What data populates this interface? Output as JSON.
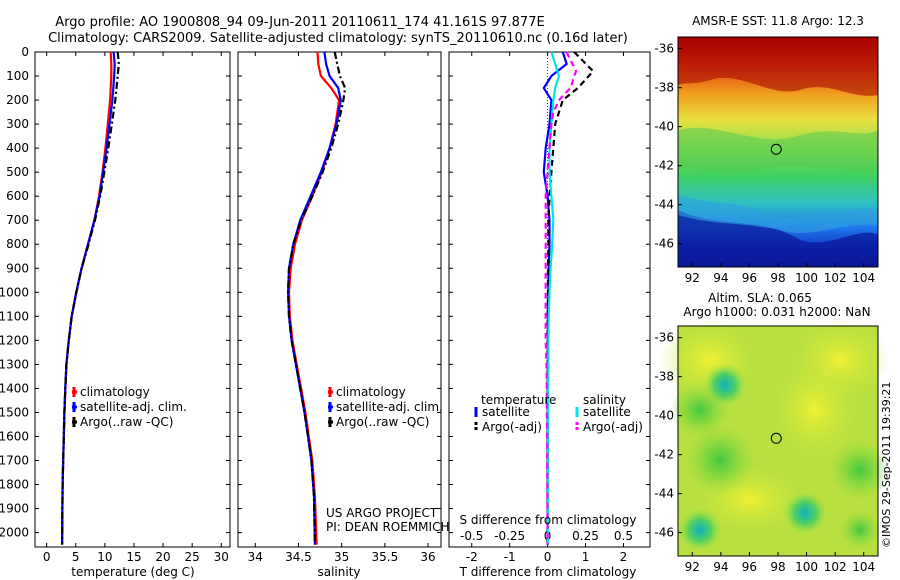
{
  "figure": {
    "title_line1": "Argo profile: AO 1900808_94 09-Jun-2011 20110611_174 41.161S 97.877E",
    "title_line2": "Climatology: CARS2009. Satellite-adjusted climatology: synTS_20110610.nc (0.16d later)",
    "credit": "©IMOS 29-Sep-2011 19:39:21"
  },
  "chart_data": [
    {
      "type": "line",
      "id": "temperature",
      "xlabel": "temperature (deg C)",
      "ylabel": "",
      "xlim": [
        -2,
        31.5
      ],
      "ylim": [
        2060,
        0
      ],
      "xticks": [
        0,
        5,
        10,
        15,
        20,
        25,
        30
      ],
      "yticks": [
        0,
        100,
        200,
        300,
        400,
        500,
        600,
        700,
        800,
        900,
        1000,
        1100,
        1200,
        1300,
        1400,
        1500,
        1600,
        1700,
        1800,
        1900,
        2000
      ],
      "legend_position": "lower-left",
      "series": [
        {
          "name": "climatology",
          "color": "#ff0000",
          "dash": "solid",
          "x": [
            11.0,
            11.1,
            11.1,
            10.9,
            10.5,
            10.1,
            9.6,
            9.0,
            8.2,
            7.1,
            6.0,
            5.1,
            4.3,
            3.8,
            3.4,
            3.2,
            3.05,
            2.95,
            2.85,
            2.75,
            2.7,
            2.65
          ],
          "y": [
            0,
            50,
            100,
            200,
            300,
            400,
            500,
            600,
            700,
            800,
            900,
            1000,
            1100,
            1200,
            1300,
            1400,
            1500,
            1600,
            1700,
            1800,
            1900,
            2050
          ]
        },
        {
          "name": "satellite-adj. clim.",
          "color": "#0000ff",
          "dash": "solid",
          "x": [
            11.5,
            11.7,
            11.6,
            11.3,
            10.8,
            10.3,
            9.7,
            9.1,
            8.2,
            7.1,
            6.0,
            5.1,
            4.3,
            3.8,
            3.4,
            3.2,
            3.05,
            2.95,
            2.85,
            2.75,
            2.7,
            2.65
          ],
          "y": [
            0,
            50,
            100,
            200,
            300,
            400,
            500,
            600,
            700,
            800,
            900,
            1000,
            1100,
            1200,
            1300,
            1400,
            1500,
            1600,
            1700,
            1800,
            1900,
            2050
          ]
        },
        {
          "name": "Argo(..raw -QC)",
          "color": "#000000",
          "dash": "dashdot",
          "x": [
            12.2,
            12.4,
            12.2,
            11.8,
            11.2,
            10.6,
            9.9,
            9.2,
            8.3,
            7.2,
            6.0,
            5.1,
            4.3,
            3.8,
            3.4,
            3.2,
            3.05,
            2.95,
            2.85,
            2.75,
            2.7,
            2.65
          ],
          "y": [
            0,
            50,
            100,
            200,
            300,
            400,
            500,
            600,
            700,
            800,
            900,
            1000,
            1100,
            1200,
            1300,
            1400,
            1500,
            1600,
            1700,
            1800,
            1900,
            2050
          ]
        }
      ]
    },
    {
      "type": "line",
      "id": "salinity",
      "xlabel": "salinity",
      "ylabel": "",
      "xlim": [
        33.8,
        36.15
      ],
      "ylim": [
        2060,
        0
      ],
      "xticks": [
        34,
        34.5,
        35,
        35.5,
        36
      ],
      "xtick_labels": [
        "34",
        "34.5",
        "35",
        "35.5",
        "36"
      ],
      "legend_position": "lower-right",
      "series": [
        {
          "name": "climatology",
          "color": "#ff0000",
          "dash": "solid",
          "x": [
            34.72,
            34.73,
            34.76,
            34.88,
            34.97,
            34.93,
            34.86,
            34.77,
            34.66,
            34.54,
            34.46,
            34.41,
            34.39,
            34.4,
            34.43,
            34.48,
            34.53,
            34.58,
            34.62,
            34.66,
            34.69,
            34.71
          ],
          "y": [
            0,
            50,
            100,
            150,
            200,
            300,
            400,
            500,
            600,
            700,
            800,
            900,
            1000,
            1100,
            1200,
            1300,
            1400,
            1500,
            1600,
            1700,
            1850,
            2050
          ]
        },
        {
          "name": "satellite-adj. clim.",
          "color": "#0000ff",
          "dash": "solid",
          "x": [
            34.8,
            34.82,
            34.86,
            34.96,
            34.99,
            34.94,
            34.86,
            34.76,
            34.64,
            34.52,
            34.44,
            34.39,
            34.38,
            34.39,
            34.42,
            34.47,
            34.52,
            34.57,
            34.61,
            34.65,
            34.68,
            34.69
          ],
          "y": [
            0,
            50,
            100,
            150,
            200,
            300,
            400,
            500,
            600,
            700,
            800,
            900,
            1000,
            1100,
            1200,
            1300,
            1400,
            1500,
            1600,
            1700,
            1850,
            2050
          ]
        },
        {
          "name": "Argo(..raw -QC)",
          "color": "#000000",
          "dash": "dashdot",
          "x": [
            34.92,
            34.95,
            34.98,
            35.04,
            35.02,
            34.96,
            34.88,
            34.78,
            34.66,
            34.53,
            34.44,
            34.39,
            34.38,
            34.39,
            34.42,
            34.47,
            34.52,
            34.57,
            34.61,
            34.65,
            34.68,
            34.69
          ],
          "y": [
            0,
            50,
            100,
            150,
            200,
            300,
            400,
            500,
            600,
            700,
            800,
            900,
            1000,
            1100,
            1200,
            1300,
            1400,
            1500,
            1600,
            1700,
            1850,
            2050
          ]
        }
      ],
      "annotation": [
        "US ARGO PROJECT",
        "PI: DEAN ROEMMICH"
      ]
    },
    {
      "type": "line",
      "id": "difference",
      "xlabel": "T difference from climatology",
      "xlabel_top": "S difference from climatology",
      "ylabel": "",
      "xlim": [
        -2.6,
        2.7
      ],
      "ylim": [
        2060,
        0
      ],
      "xticks": [
        -2,
        -1,
        0,
        1,
        2
      ],
      "top_tick_values": [
        -0.5,
        -0.25,
        0,
        0.25,
        0.5
      ],
      "top_tick_labels": [
        "-0.5",
        "-0.25",
        "0",
        "0.25",
        "0.5"
      ],
      "legend_position": "lower-center",
      "legend_group_titles": [
        "temperature",
        "salinity"
      ],
      "series": [
        {
          "name": "satellite",
          "group": "temperature",
          "color": "#0000ff",
          "dash": "solid",
          "x": [
            0.4,
            0.5,
            0.1,
            -0.1,
            0.1,
            0.05,
            -0.05,
            -0.1,
            0,
            0.05,
            0.05,
            0.03,
            0.02,
            0.01,
            0.01,
            0.01,
            0,
            0,
            0,
            0,
            0
          ],
          "y": [
            0,
            50,
            100,
            150,
            200,
            300,
            400,
            500,
            600,
            700,
            800,
            900,
            1000,
            1100,
            1200,
            1300,
            1400,
            1500,
            1600,
            1700,
            2050
          ]
        },
        {
          "name": "Argo(-adj)",
          "group": "temperature",
          "color": "#000000",
          "dash": "dashed",
          "x": [
            0.7,
            1.2,
            0.8,
            0.4,
            0.3,
            0.2,
            0.15,
            0.1,
            0.05,
            0.02,
            0.02,
            0.01,
            0.01,
            0,
            0,
            0,
            0,
            0,
            0,
            0,
            0
          ],
          "y": [
            0,
            80,
            150,
            200,
            250,
            300,
            400,
            500,
            600,
            700,
            800,
            900,
            1000,
            1100,
            1200,
            1300,
            1400,
            1500,
            1600,
            1700,
            2050
          ]
        },
        {
          "name": "satellite",
          "group": "salinity",
          "color": "#00e5e5",
          "dash": "solid",
          "x": [
            0.1,
            0.2,
            0.3,
            0.2,
            0.15,
            0.1,
            0.05,
            0.05,
            0.1,
            0.15,
            0.12,
            0.08,
            0.05,
            0.03,
            0.02,
            0.02,
            0.01,
            0.01,
            0.01,
            0.01,
            0.01
          ],
          "y": [
            0,
            50,
            100,
            150,
            200,
            300,
            400,
            500,
            600,
            700,
            800,
            900,
            1000,
            1100,
            1200,
            1300,
            1400,
            1500,
            1600,
            1700,
            2050
          ]
        },
        {
          "name": "Argo(-adj)",
          "group": "salinity",
          "color": "#ff00ff",
          "dash": "dashed",
          "x": [
            0.5,
            0.75,
            0.6,
            0.3,
            0.15,
            0.1,
            0.05,
            0,
            -0.05,
            -0.05,
            -0.05,
            -0.05,
            -0.05,
            -0.05,
            -0.05,
            -0.03,
            -0.02,
            -0.02,
            -0.01,
            -0.01,
            0
          ],
          "y": [
            0,
            80,
            150,
            200,
            250,
            300,
            400,
            500,
            600,
            700,
            800,
            900,
            1000,
            1100,
            1200,
            1300,
            1400,
            1500,
            1600,
            1700,
            2050
          ]
        }
      ]
    },
    {
      "type": "heatmap",
      "id": "sst-map",
      "title": "AMSR-E SST: 11.8 Argo: 12.3",
      "xlim": [
        91,
        105
      ],
      "ylim": [
        -47.2,
        -35.4
      ],
      "xticks": [
        92,
        94,
        96,
        98,
        100,
        102,
        104
      ],
      "yticks": [
        -36,
        -38,
        -40,
        -42,
        -44,
        -46
      ],
      "marker": {
        "lon": 97.877,
        "lat": -41.161,
        "shape": "circle"
      }
    },
    {
      "type": "heatmap",
      "id": "sla-map",
      "title_line1": "Altim. SLA: 0.065",
      "title_line2": "Argo h1000: 0.031 h2000: NaN",
      "xlim": [
        91,
        105
      ],
      "ylim": [
        -47.2,
        -35.4
      ],
      "xticks": [
        92,
        94,
        96,
        98,
        100,
        102,
        104
      ],
      "yticks": [
        -36,
        -38,
        -40,
        -42,
        -44,
        -46
      ],
      "marker": {
        "lon": 97.877,
        "lat": -41.161,
        "shape": "circle"
      }
    }
  ]
}
